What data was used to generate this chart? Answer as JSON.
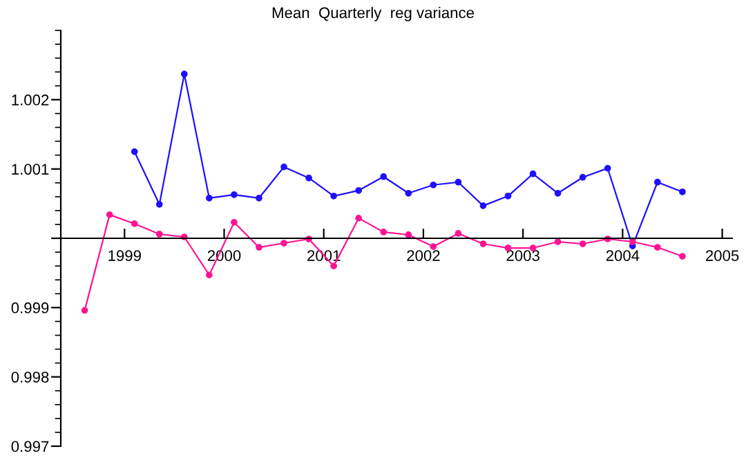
{
  "chart_data": {
    "type": "line",
    "title": "Mean  Quarterly  reg variance",
    "x": [
      1998.6,
      1998.85,
      1999.1,
      1999.35,
      1999.6,
      1999.85,
      2000.1,
      2000.35,
      2000.6,
      2000.85,
      2001.1,
      2001.35,
      2001.6,
      2001.85,
      2002.1,
      2002.35,
      2002.6,
      2002.85,
      2003.1,
      2003.35,
      2003.6,
      2003.85,
      2004.1,
      2004.35,
      2004.6
    ],
    "series": [
      {
        "color": "#1e10ff",
        "values": [
          null,
          null,
          1.00125,
          1.00049,
          1.00237,
          1.00058,
          1.00063,
          1.00058,
          1.00103,
          1.00087,
          1.00061,
          1.00069,
          1.00089,
          1.00065,
          1.00077,
          1.00081,
          1.00047,
          1.00061,
          1.00093,
          1.00065,
          1.00088,
          1.00101,
          0.99989,
          1.00081,
          1.00067
        ]
      },
      {
        "color": "#ff1493",
        "values": [
          0.99896,
          1.00034,
          1.00021,
          1.00006,
          1.00002,
          0.99947,
          1.00023,
          0.99987,
          0.99993,
          0.99999,
          0.9996,
          1.00029,
          1.00009,
          1.00005,
          0.99988,
          1.00007,
          0.99992,
          0.99986,
          0.99986,
          0.99995,
          0.99992,
          0.99999,
          0.99995,
          0.99987,
          0.99974
        ]
      }
    ],
    "xlim": [
      1998.36,
      2005.1
    ],
    "xticks": [
      1999,
      2000,
      2001,
      2002,
      2003,
      2004,
      2005
    ],
    "ylim": [
      0.997,
      1.003
    ],
    "yticks": [
      0.997,
      0.998,
      0.999,
      {
        "value": 1.0,
        "label": null
      },
      1.001,
      1.002
    ],
    "marker": "circle",
    "line_style": "solid",
    "grid": false,
    "legend": false
  }
}
